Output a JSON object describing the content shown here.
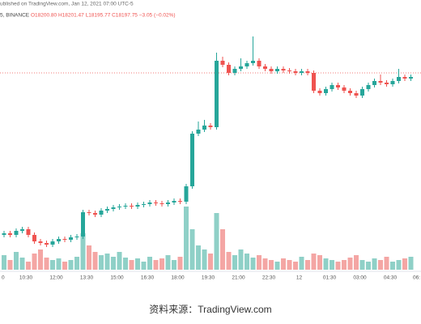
{
  "chart_data": {
    "type": "candlestick",
    "header_line": "ublished on TradingView.com, Jan 12, 2021 07:00 UTC-5",
    "symbol": "5, BINANCE",
    "ohlc_text": "O18200.80 H18201.47 L18195.77 C18197.75 −3.05 (−0.02%)",
    "source": "资料来源：TradingView.com",
    "up_color": "#26a69a",
    "down_color": "#ef5350",
    "up_volume_color": "#8fd0c7",
    "down_volume_color": "#f4a6a4",
    "price_line": 250,
    "ylim": [
      0,
      340
    ],
    "volume_lim": [
      0,
      100
    ],
    "xlabels": [
      "0",
      "10:30",
      "12:00",
      "13:30",
      "15:00",
      "16:30",
      "18:00",
      "19:30",
      "21:00",
      "22:30",
      "12",
      "01:30",
      "03:00",
      "04:30",
      "06:"
    ],
    "open": [
      50,
      52,
      50,
      55,
      57,
      50,
      42,
      40,
      38,
      42,
      45,
      44,
      47,
      48,
      78,
      77,
      75,
      80,
      82,
      84,
      85,
      86,
      85,
      87,
      88,
      90,
      89,
      88,
      90,
      92,
      91,
      110,
      175,
      180,
      185,
      183,
      265,
      260,
      250,
      255,
      258,
      262,
      265,
      258,
      255,
      252,
      255,
      253,
      252,
      250,
      252,
      250,
      228,
      225,
      230,
      235,
      232,
      228,
      225,
      222,
      230,
      235,
      240,
      238,
      236,
      240,
      245,
      243
    ],
    "high": [
      55,
      55,
      58,
      60,
      60,
      53,
      45,
      43,
      45,
      48,
      48,
      50,
      51,
      81,
      81,
      80,
      83,
      85,
      87,
      88,
      89,
      89,
      90,
      91,
      93,
      93,
      92,
      93,
      95,
      95,
      113,
      178,
      190,
      192,
      188,
      275,
      270,
      263,
      258,
      268,
      265,
      295,
      268,
      261,
      258,
      258,
      258,
      256,
      255,
      255,
      255,
      253,
      231,
      233,
      238,
      238,
      235,
      231,
      228,
      233,
      238,
      243,
      248,
      241,
      243,
      255,
      248,
      248
    ],
    "low": [
      47,
      47,
      47,
      52,
      47,
      39,
      37,
      35,
      35,
      39,
      41,
      41,
      44,
      45,
      74,
      72,
      72,
      77,
      79,
      81,
      82,
      82,
      82,
      84,
      85,
      86,
      85,
      85,
      87,
      88,
      88,
      107,
      172,
      177,
      180,
      180,
      257,
      247,
      247,
      252,
      255,
      259,
      255,
      252,
      249,
      249,
      250,
      249,
      247,
      247,
      247,
      225,
      222,
      222,
      227,
      229,
      225,
      222,
      219,
      219,
      227,
      232,
      235,
      233,
      233,
      237,
      240,
      240
    ],
    "close": [
      52,
      50,
      55,
      57,
      50,
      42,
      40,
      38,
      42,
      45,
      44,
      47,
      48,
      78,
      77,
      75,
      80,
      82,
      84,
      85,
      86,
      85,
      87,
      88,
      90,
      89,
      88,
      90,
      92,
      91,
      110,
      175,
      180,
      185,
      183,
      265,
      260,
      250,
      255,
      258,
      262,
      265,
      258,
      255,
      252,
      255,
      253,
      252,
      250,
      252,
      250,
      228,
      225,
      230,
      235,
      232,
      228,
      225,
      222,
      230,
      235,
      240,
      238,
      236,
      240,
      245,
      243,
      245
    ],
    "volume": [
      18,
      12,
      22,
      15,
      10,
      20,
      25,
      15,
      12,
      14,
      10,
      12,
      16,
      45,
      30,
      22,
      18,
      20,
      16,
      22,
      15,
      12,
      14,
      10,
      16,
      12,
      14,
      18,
      12,
      16,
      78,
      50,
      30,
      25,
      20,
      70,
      50,
      22,
      18,
      25,
      20,
      15,
      18,
      14,
      12,
      10,
      14,
      12,
      10,
      16,
      12,
      20,
      18,
      14,
      12,
      10,
      12,
      15,
      18,
      12,
      10,
      14,
      12,
      16,
      10,
      12,
      14,
      16
    ]
  }
}
